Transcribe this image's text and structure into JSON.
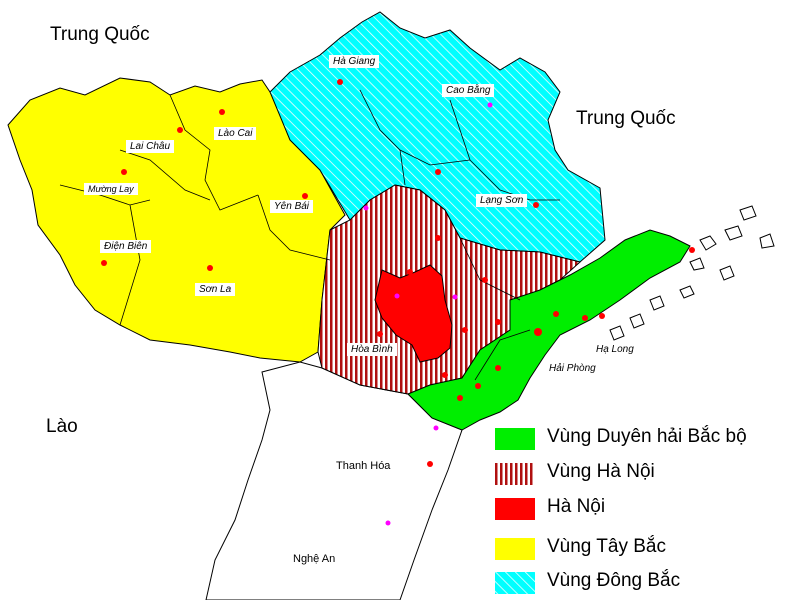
{
  "countries": {
    "china_west": "Trung Quốc",
    "china_east": "Trung Quốc",
    "laos": "Lào"
  },
  "cities": {
    "ha_giang": "Hà Giang",
    "cao_bang": "Cao Bằng",
    "lai_chau": "Lai Châu",
    "lao_cai": "Lào Cai",
    "muong_lay": "Mường Lay",
    "yen_bai": "Yên Bái",
    "lang_son": "Lạng Sơn",
    "dien_bien": "Điện Biên",
    "son_la": "Sơn La",
    "hoa_binh": "Hòa Bình",
    "ha_long": "Hạ Long",
    "hai_phong": "Hải Phòng",
    "thanh_hoa": "Thanh Hóa",
    "nghe_an": "Nghệ An"
  },
  "legend": [
    {
      "label": "Vùng Duyên hải Bắc bộ",
      "color": "#00ee00",
      "pattern": "solid"
    },
    {
      "label": "Vùng Hà Nội",
      "color": "#b01010",
      "pattern": "vertical-stripes"
    },
    {
      "label": "Hà Nội",
      "color": "#ff0000",
      "pattern": "solid"
    },
    {
      "label": "Vùng Tây Bắc",
      "color": "#ffff00",
      "pattern": "solid"
    },
    {
      "label": "Vùng Đông Bắc",
      "color": "#00ffff",
      "pattern": "diagonal-hatch"
    }
  ],
  "colors": {
    "tay_bac": "#ffff00",
    "dong_bac": "#00ffff",
    "vung_ha_noi": "#b01010",
    "ha_noi": "#ff0000",
    "duyen_hai": "#00ee00",
    "city_dot": "#ff0000",
    "minor_dot": "#ff00ff"
  }
}
